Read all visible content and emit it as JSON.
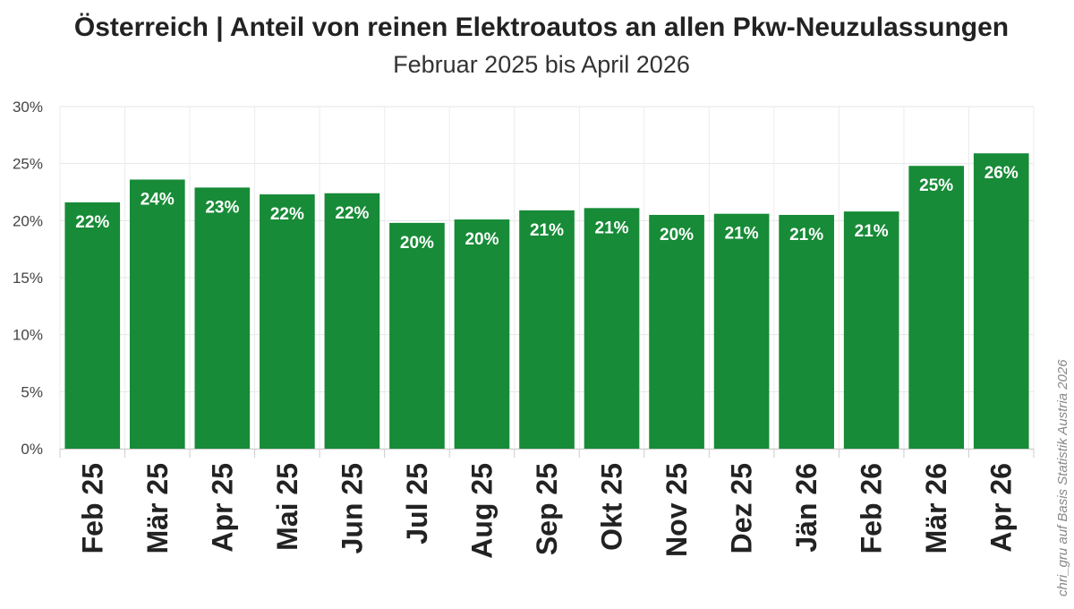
{
  "chart_data": {
    "type": "bar",
    "title": "Österreich | Anteil von reinen Elektroautos an allen Pkw-Neuzulassungen",
    "subtitle": "Februar 2025 bis April 2026",
    "categories": [
      "Feb 25",
      "Mär 25",
      "Apr 25",
      "Mai 25",
      "Jun 25",
      "Jul 25",
      "Aug 25",
      "Sep 25",
      "Okt 25",
      "Nov 25",
      "Dez 25",
      "Jän 26",
      "Feb 26",
      "Mär 26",
      "Apr 26"
    ],
    "values": [
      21.6,
      23.6,
      22.9,
      22.3,
      22.4,
      19.8,
      20.1,
      20.9,
      21.1,
      20.5,
      20.6,
      20.5,
      20.8,
      24.8,
      25.9
    ],
    "data_labels": [
      "22%",
      "24%",
      "23%",
      "22%",
      "22%",
      "20%",
      "20%",
      "21%",
      "21%",
      "20%",
      "21%",
      "21%",
      "21%",
      "25%",
      "26%"
    ],
    "yticks": [
      "0%",
      "5%",
      "10%",
      "15%",
      "20%",
      "25%",
      "30%"
    ],
    "ylim": [
      0,
      30
    ],
    "bar_color": "#178b37",
    "grid": true,
    "source": "chri_gru auf Basis Statistik Austria 2026"
  }
}
